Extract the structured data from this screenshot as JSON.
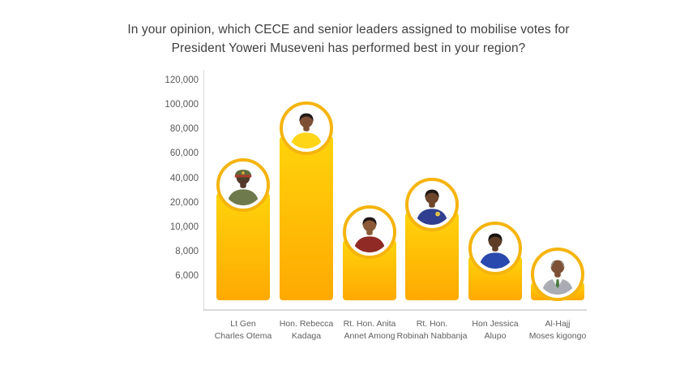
{
  "page": {
    "background": "#ffffff"
  },
  "title": {
    "line1": "In your opinion, which CECE and senior leaders assigned to mobilise votes for",
    "line2": "President Yoweri Museveni has performed best in your region?",
    "color": "#404040"
  },
  "chart_data": {
    "type": "bar",
    "title": "In your opinion, which CECE and senior leaders assigned to mobilise votes for President Yoweri Museveni has performed best in your region?",
    "xlabel": "",
    "ylabel": "",
    "legend": "none",
    "grid": "off",
    "y_axis": {
      "tick_labels": [
        "120,000",
        "100,000",
        "80,000",
        "60,000",
        "40,000",
        "20,000",
        "10,000",
        "8,000",
        "6,000"
      ],
      "tick_values": [
        120000,
        100000,
        80000,
        60000,
        40000,
        20000,
        10000,
        8000,
        6000
      ],
      "baseline_value": 4000,
      "scale": "nonlinear-even-tick-spacing",
      "tick_label_color": "#595959",
      "axis_line_color": "#d9d9d9"
    },
    "categories": [
      "Lt Gen Charles Otema",
      "Hon. Rebecca Kadaga",
      "Rt. Hon. Anita Annet Among",
      "Rt. Hon. Robinah Nabbanja",
      "Hon Jessica Alupo",
      "Al-Hajj Moses kigongo"
    ],
    "values": [
      28000,
      74000,
      8900,
      16000,
      7600,
      5500
    ],
    "bar_style": {
      "gradient_top": "#ffd30b",
      "gradient_bottom": "#ffa902",
      "ring_color": "#f5b40e"
    },
    "category_label_color": "#606060",
    "people": [
      {
        "name_line1": "Lt Gen",
        "name_line2": "Charles Otema",
        "value": 28000,
        "avatar": {
          "label": "man-in-military-uniform",
          "skin": "#54392a",
          "outfit": "#6e7a4c",
          "hair": "#1c1c1c",
          "hair_style": "none",
          "hat": {
            "color": "#5d6b3a",
            "band": "#b03a30",
            "badge": "#e0b33a",
            "visor": "#39452a"
          }
        }
      },
      {
        "name_line1": "Hon. Rebecca",
        "name_line2": "Kadaga",
        "value": 74000,
        "avatar": {
          "label": "woman-in-yellow",
          "skin": "#7d5036",
          "outfit": "#ffd518",
          "hair": "#221a16",
          "hair_style": "full"
        }
      },
      {
        "name_line1": "Rt. Hon. Anita",
        "name_line2": "Annet Among",
        "value": 8900,
        "avatar": {
          "label": "woman-in-maroon",
          "skin": "#8a5a38",
          "outfit": "#8f2a24",
          "hair": "#201714",
          "hair_style": "full"
        }
      },
      {
        "name_line1": "Rt. Hon.",
        "name_line2": "Robinah Nabbanja",
        "value": 16000,
        "avatar": {
          "label": "woman-in-blue-with-corsage",
          "skin": "#6e462b",
          "outfit": "#303f8f",
          "hair": "#1d1714",
          "hair_style": "full",
          "corsage": "#efcf4e"
        }
      },
      {
        "name_line1": "Hon Jessica",
        "name_line2": "Alupo",
        "value": 7600,
        "avatar": {
          "label": "woman-in-blue",
          "skin": "#5e3d26",
          "outfit": "#2a49ae",
          "hair": "#171310",
          "hair_style": "full"
        }
      },
      {
        "name_line1": "Al-Hajj",
        "name_line2": "Moses kigongo",
        "value": 5500,
        "avatar": {
          "label": "balding-man-in-gray-suit",
          "skin": "#7c5136",
          "outfit": "#a9adb3",
          "hair": "#97948b",
          "hair_style": "balding",
          "shirt": "#f5f5f2",
          "tie": "#4a7a40"
        }
      }
    ]
  }
}
